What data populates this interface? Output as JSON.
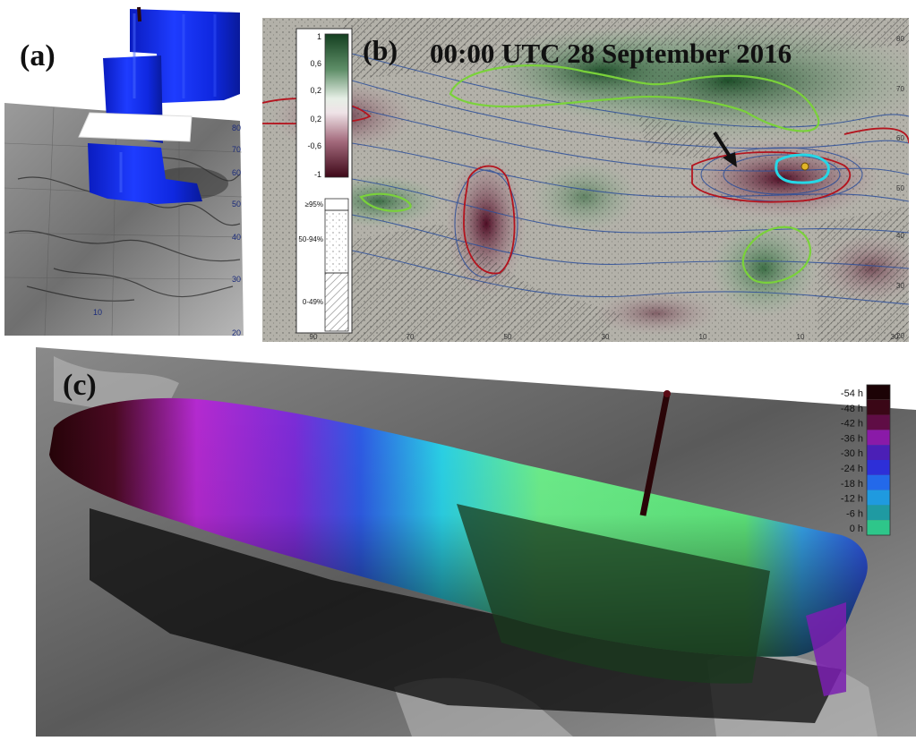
{
  "panel_a": {
    "label": "(a)",
    "lat_ticks": [
      "80",
      "70",
      "60",
      "50",
      "40",
      "30",
      "20"
    ],
    "lon_ticks": [
      "10"
    ]
  },
  "panel_b": {
    "label": "(b)",
    "title": "00:00 UTC 28 September 2016",
    "colorbar_ticks": [
      "1",
      "0,6",
      "0,2",
      "0,2",
      "-0,6",
      "-1"
    ],
    "prob_legend": [
      "≥95%",
      "50-94%",
      "0-49%"
    ],
    "lat_ticks": [
      "80",
      "70",
      "60",
      "50",
      "40",
      "30",
      "20"
    ],
    "lon_ticks": [
      "90",
      "70",
      "50",
      "30",
      "10",
      "10",
      "30",
      "50"
    ],
    "colors": {
      "positive": "#1f5a2e",
      "negative": "#5a1028",
      "contour_green": "#7ad23a",
      "contour_red": "#b4141e",
      "contour_cyan": "#26d7e6",
      "isolines": "#2d4f9a"
    }
  },
  "panel_c": {
    "label": "(c)",
    "legend": [
      {
        "label": "-54 h",
        "color": "#1c0306"
      },
      {
        "label": "-48 h",
        "color": "#3a0716"
      },
      {
        "label": "-42 h",
        "color": "#5f0d45"
      },
      {
        "label": "-36 h",
        "color": "#8a1aa8"
      },
      {
        "label": "-30 h",
        "color": "#4b1fb6"
      },
      {
        "label": "-24 h",
        "color": "#2d2fd8"
      },
      {
        "label": "-18 h",
        "color": "#2369ea"
      },
      {
        "label": "-12 h",
        "color": "#1f9adf"
      },
      {
        "label": "-6 h",
        "color": "#1f9aa2"
      },
      {
        "label": "0 h",
        "color": "#2ec68a"
      }
    ]
  }
}
